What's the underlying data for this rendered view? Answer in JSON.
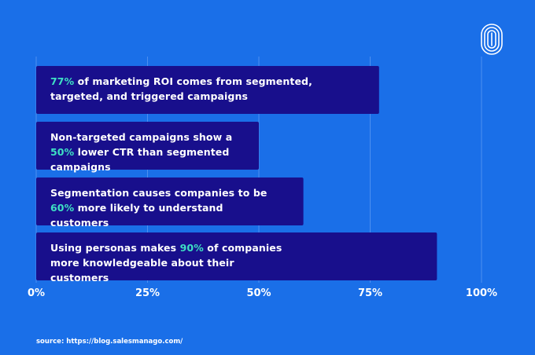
{
  "colors": {
    "background": "#1a6fe8",
    "bar": "#180f8c",
    "highlight": "#3ee0c4",
    "text": "#ffffff",
    "gridline": "#4d8ff0"
  },
  "logo": {
    "icon": "fingerprint-icon"
  },
  "chart_data": {
    "type": "bar",
    "orientation": "horizontal",
    "xlim": [
      0,
      100
    ],
    "x_ticks": [
      "0%",
      "25%",
      "50%",
      "75%",
      "100%"
    ],
    "grid": true,
    "bars": [
      {
        "value": 77,
        "highlight": "77%",
        "before": "",
        "after": " of marketing ROI comes from segmented, targeted, and triggered campaigns"
      },
      {
        "value": 50,
        "highlight": "50%",
        "before": "Non-targeted campaigns show a ",
        "after": " lower CTR than segmented campaigns"
      },
      {
        "value": 60,
        "highlight": "60%",
        "before": "Segmentation causes companies to be ",
        "after": " more likely to understand customers"
      },
      {
        "value": 90,
        "highlight": "90%",
        "before": "Using personas makes ",
        "after": " of companies more knowledgeable about their customers"
      }
    ]
  },
  "source": "source: https://blog.salesmanago.com/"
}
